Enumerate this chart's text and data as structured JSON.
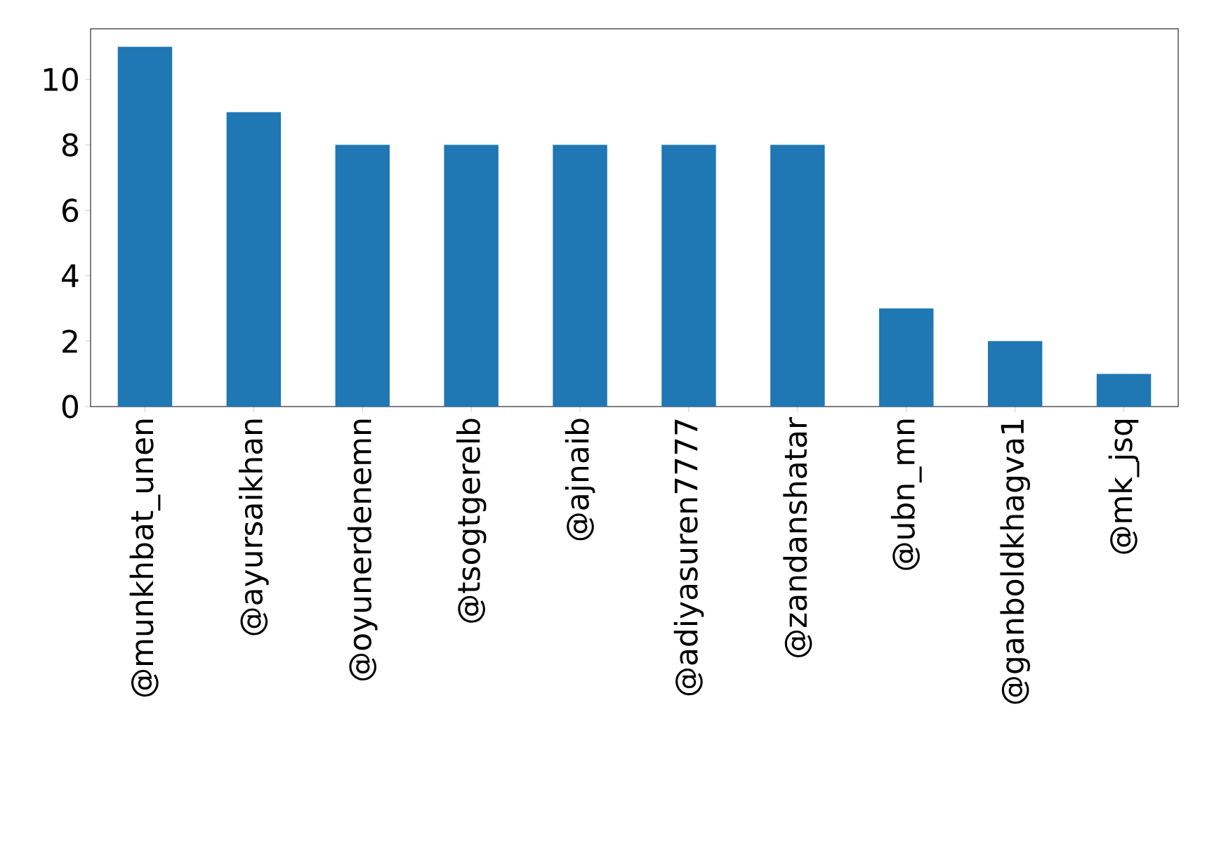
{
  "chart_data": {
    "type": "bar",
    "categories": [
      "@munkhbat_unen",
      "@ayursaikhan",
      "@oyunerdenemn",
      "@tsogtgerelb",
      "@ajnaib",
      "@adiyasuren7777",
      "@zandanshatar",
      "@ubn_mn",
      "@ganboldkhagva1",
      "@mk_jsq"
    ],
    "values": [
      11,
      9,
      8,
      8,
      8,
      8,
      8,
      3,
      2,
      1
    ],
    "color": "#1f77b4",
    "ylim": [
      0,
      11.55
    ],
    "yticks": [
      0,
      2,
      4,
      6,
      8,
      10
    ]
  }
}
